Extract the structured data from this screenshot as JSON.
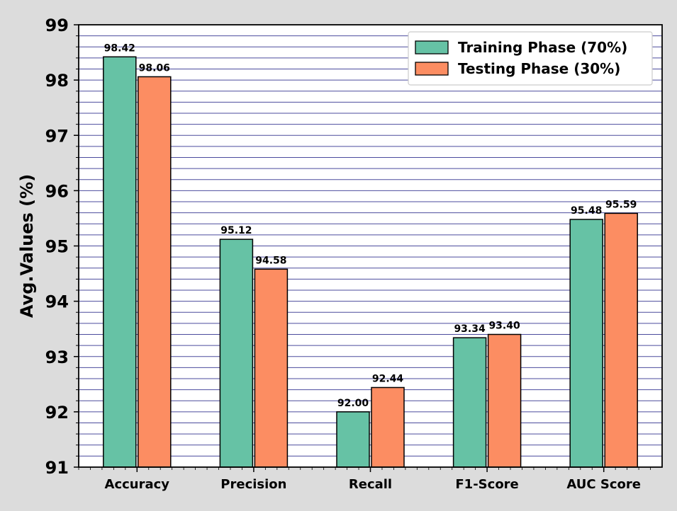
{
  "chart_data": {
    "type": "bar",
    "title": "",
    "xlabel": "",
    "ylabel": "Avg.Values (%)",
    "ylim": [
      91,
      99
    ],
    "yticks": [
      "91",
      "92",
      "93",
      "94",
      "95",
      "96",
      "97",
      "98",
      "99"
    ],
    "grid": "horizontal dense",
    "legend_position": "top-right",
    "categories": [
      "Accuracy",
      "Precision",
      "Recall",
      "F1-Score",
      "AUC Score"
    ],
    "series": [
      {
        "name": "Training Phase (70%)",
        "color": "#66c2a5",
        "values": [
          98.42,
          95.12,
          92.0,
          93.34,
          95.48
        ],
        "labels": [
          "98.42",
          "95.12",
          "92.00",
          "93.34",
          "95.48"
        ]
      },
      {
        "name": "Testing Phase (30%)",
        "color": "#fc8d62",
        "values": [
          98.06,
          94.58,
          92.44,
          93.4,
          95.59
        ],
        "labels": [
          "98.06",
          "94.58",
          "92.44",
          "93.40",
          "95.59"
        ]
      }
    ],
    "colors": {
      "grid": "#2b2b8c",
      "frame": "#000000",
      "background": "#ffffff"
    }
  }
}
